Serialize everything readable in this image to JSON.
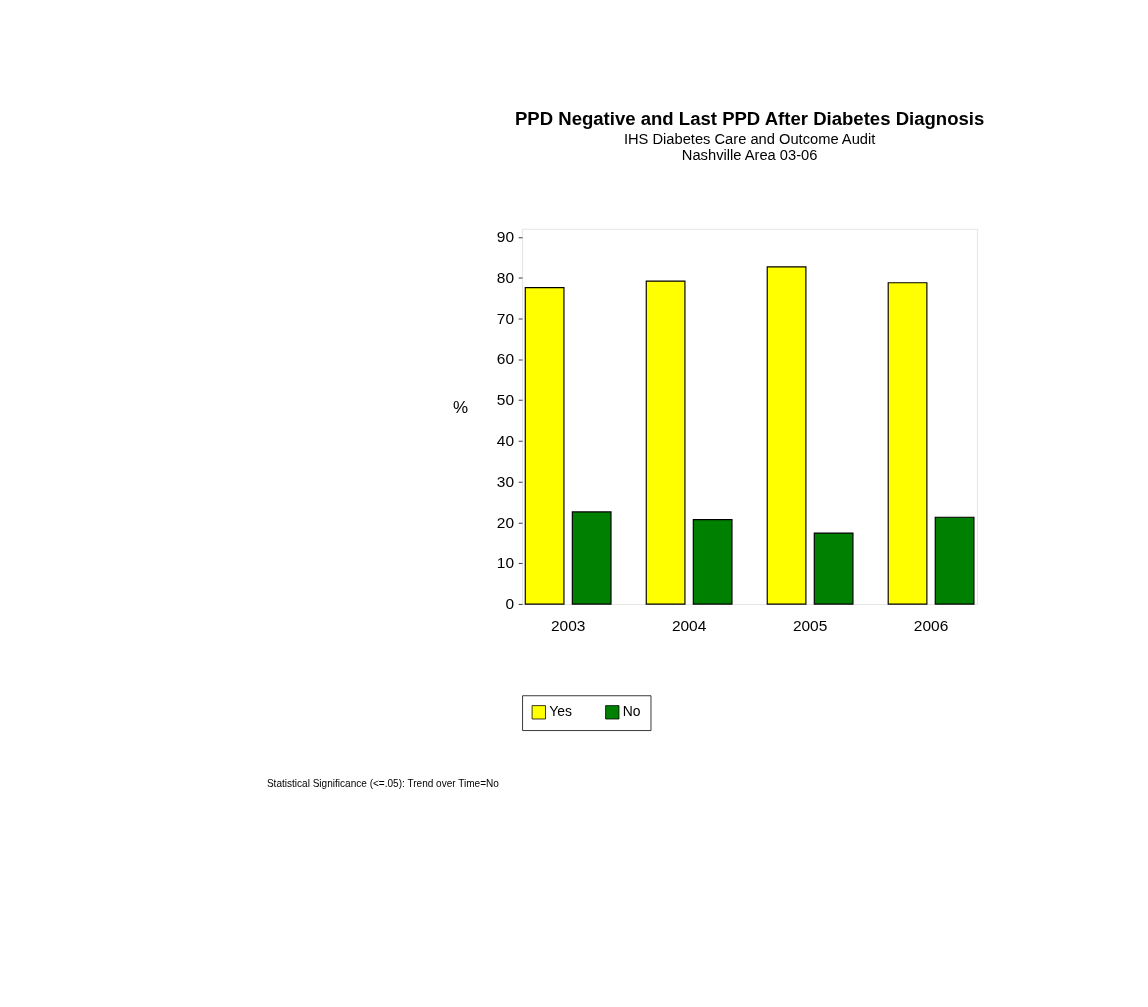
{
  "chart_data": {
    "type": "bar",
    "title": "PPD Negative and Last PPD After Diabetes Diagnosis",
    "subtitle": [
      "IHS Diabetes Care and Outcome Audit",
      "Nashville Area 03-06"
    ],
    "ylabel": "%",
    "categories": [
      "2003",
      "2004",
      "2005",
      "2006"
    ],
    "series": [
      {
        "name": "Yes",
        "color": "#ffff00",
        "values": [
          77.6,
          79.2,
          82.7,
          78.8
        ]
      },
      {
        "name": "No",
        "color": "#008000",
        "values": [
          22.6,
          20.7,
          17.4,
          21.3
        ]
      }
    ],
    "ylim": [
      0,
      92
    ],
    "yticks": [
      0,
      10,
      20,
      30,
      40,
      50,
      60,
      70,
      80,
      90
    ],
    "grid": false,
    "legend": "bottom",
    "annotations": [
      "Statistical Significance (<=.05): Trend over Time=No"
    ]
  }
}
